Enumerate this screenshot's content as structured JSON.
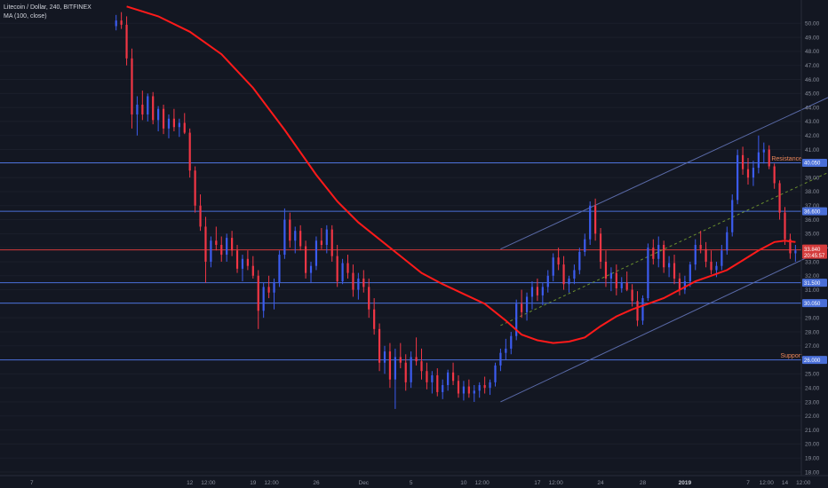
{
  "legend": {
    "symbol": "Litecoin / Dollar, 240, BITFINEX",
    "indicator": "MA (100, close)"
  },
  "colors": {
    "background": "#131722",
    "up": "#3c5cf0",
    "down": "#f23645",
    "ma": "#ff1a1a",
    "hline_blue": "#4a6fd8",
    "hline_red": "#d43b3b",
    "channel": "#5a6aa8",
    "midline": "#6a8f2e",
    "axis_text": "#8a8f9c",
    "label_orange": "#f0885a"
  },
  "chart_data": {
    "type": "candlestick",
    "title": "Litecoin / Dollar, 240, BITFINEX",
    "ylim": [
      18,
      51
    ],
    "y_ticks": [
      "50.00",
      "49.00",
      "48.00",
      "47.00",
      "46.00",
      "45.00",
      "44.00",
      "43.00",
      "42.00",
      "41.00",
      "40.00",
      "39.00",
      "38.00",
      "37.00",
      "36.00",
      "35.00",
      "34.00",
      "33.00",
      "32.00",
      "31.00",
      "30.00",
      "29.00",
      "28.00",
      "27.00",
      "26.00",
      "25.00",
      "24.00",
      "23.00",
      "22.00",
      "21.00",
      "20.00",
      "19.00",
      "18.00"
    ],
    "x_ticks": [
      {
        "label": "7",
        "t": 0
      },
      {
        "label": "12",
        "t": 30
      },
      {
        "label": "12:00",
        "t": 33.5
      },
      {
        "label": "19",
        "t": 42
      },
      {
        "label": "12:00",
        "t": 45.5
      },
      {
        "label": "26",
        "t": 54
      },
      {
        "label": "Dec",
        "t": 63
      },
      {
        "label": "5",
        "t": 72
      },
      {
        "label": "10",
        "t": 82
      },
      {
        "label": "12:00",
        "t": 85.5
      },
      {
        "label": "17",
        "t": 96
      },
      {
        "label": "12:00",
        "t": 99.5
      },
      {
        "label": "24",
        "t": 108
      },
      {
        "label": "28",
        "t": 116
      },
      {
        "label": "2019",
        "t": 124,
        "bold": true
      },
      {
        "label": "7",
        "t": 136
      },
      {
        "label": "12:00",
        "t": 139.5
      },
      {
        "label": "14",
        "t": 143
      },
      {
        "label": "12:00",
        "t": 146.5
      }
    ],
    "x_range": [
      -2,
      150
    ],
    "candles": [
      [
        16,
        49.8,
        50.6,
        49.5,
        50.2
      ],
      [
        17,
        50.2,
        50.8,
        49.6,
        49.9
      ],
      [
        18,
        49.9,
        50.5,
        47.0,
        47.5
      ],
      [
        19,
        47.5,
        48.2,
        42.5,
        43.5
      ],
      [
        20,
        43.5,
        44.8,
        42.0,
        44.2
      ],
      [
        21,
        44.2,
        45.2,
        43.1,
        43.5
      ],
      [
        22,
        43.5,
        45.0,
        43.0,
        44.8
      ],
      [
        23,
        44.8,
        45.1,
        42.8,
        43.1
      ],
      [
        24,
        43.1,
        44.1,
        42.3,
        43.9
      ],
      [
        25,
        43.9,
        44.2,
        42.1,
        42.5
      ],
      [
        26,
        42.5,
        43.5,
        41.8,
        43.2
      ],
      [
        27,
        43.2,
        43.9,
        42.3,
        42.6
      ],
      [
        28,
        42.6,
        43.2,
        41.9,
        42.9
      ],
      [
        29,
        42.9,
        43.6,
        42.1,
        42.2
      ],
      [
        30,
        42.2,
        42.5,
        39.0,
        39.5
      ],
      [
        31,
        39.5,
        39.8,
        36.5,
        37.0
      ],
      [
        32,
        37.0,
        37.8,
        35.2,
        35.5
      ],
      [
        33,
        35.5,
        36.2,
        31.5,
        33.0
      ],
      [
        34,
        33.0,
        34.8,
        32.6,
        34.5
      ],
      [
        35,
        34.5,
        35.5,
        33.8,
        34.2
      ],
      [
        36,
        34.2,
        34.8,
        33.0,
        33.5
      ],
      [
        37,
        33.5,
        35.0,
        33.0,
        34.7
      ],
      [
        38,
        34.7,
        35.2,
        33.4,
        33.8
      ],
      [
        39,
        33.8,
        34.2,
        32.2,
        32.5
      ],
      [
        40,
        32.5,
        33.5,
        31.6,
        33.2
      ],
      [
        41,
        33.2,
        33.8,
        32.4,
        32.7
      ],
      [
        42,
        32.7,
        33.4,
        31.8,
        32.0
      ],
      [
        43,
        32.0,
        32.4,
        28.2,
        29.5
      ],
      [
        44,
        29.5,
        31.5,
        29.0,
        31.2
      ],
      [
        45,
        31.2,
        32.0,
        30.4,
        30.8
      ],
      [
        46,
        30.8,
        31.8,
        29.6,
        31.5
      ],
      [
        47,
        31.5,
        33.8,
        31.2,
        33.5
      ],
      [
        48,
        33.5,
        36.8,
        33.2,
        36.0
      ],
      [
        49,
        36.0,
        36.5,
        34.0,
        34.5
      ],
      [
        50,
        34.5,
        35.5,
        33.6,
        35.2
      ],
      [
        51,
        35.2,
        35.6,
        33.8,
        34.1
      ],
      [
        52,
        34.1,
        34.5,
        31.8,
        32.2
      ],
      [
        53,
        32.2,
        33.0,
        31.5,
        32.7
      ],
      [
        54,
        32.7,
        34.8,
        32.4,
        34.5
      ],
      [
        55,
        34.5,
        35.4,
        33.9,
        34.2
      ],
      [
        56,
        34.2,
        35.6,
        33.6,
        35.3
      ],
      [
        57,
        35.3,
        35.6,
        33.0,
        33.4
      ],
      [
        58,
        33.4,
        34.2,
        31.2,
        31.6
      ],
      [
        59,
        31.6,
        33.2,
        31.4,
        32.9
      ],
      [
        60,
        32.9,
        33.5,
        31.8,
        32.2
      ],
      [
        61,
        32.2,
        32.8,
        30.5,
        31.0
      ],
      [
        62,
        31.0,
        32.2,
        30.3,
        31.8
      ],
      [
        63,
        31.8,
        32.4,
        30.8,
        31.2
      ],
      [
        64,
        31.2,
        31.8,
        29.0,
        29.6
      ],
      [
        65,
        29.6,
        30.4,
        27.8,
        28.2
      ],
      [
        66,
        28.2,
        28.6,
        25.2,
        25.8
      ],
      [
        67,
        25.8,
        27.0,
        25.0,
        26.6
      ],
      [
        68,
        26.6,
        27.2,
        24.0,
        24.6
      ],
      [
        69,
        24.6,
        26.8,
        22.5,
        26.2
      ],
      [
        70,
        26.2,
        27.2,
        25.4,
        25.8
      ],
      [
        71,
        25.8,
        26.4,
        23.8,
        24.4
      ],
      [
        72,
        24.4,
        26.6,
        24.0,
        26.2
      ],
      [
        73,
        26.2,
        27.6,
        25.6,
        25.9
      ],
      [
        74,
        25.9,
        26.8,
        24.6,
        25.2
      ],
      [
        75,
        25.2,
        25.8,
        23.9,
        24.4
      ],
      [
        76,
        24.4,
        25.2,
        23.6,
        24.9
      ],
      [
        77,
        24.9,
        25.4,
        23.4,
        23.7
      ],
      [
        78,
        23.7,
        24.6,
        23.2,
        24.2
      ],
      [
        79,
        24.2,
        25.3,
        23.8,
        25.1
      ],
      [
        80,
        25.1,
        25.8,
        24.2,
        24.5
      ],
      [
        81,
        24.5,
        24.9,
        23.3,
        23.6
      ],
      [
        82,
        23.6,
        24.5,
        23.1,
        24.1
      ],
      [
        83,
        24.1,
        24.6,
        23.3,
        23.6
      ],
      [
        84,
        23.6,
        24.2,
        23.0,
        23.8
      ],
      [
        85,
        23.8,
        24.4,
        23.3,
        24.2
      ],
      [
        86,
        24.2,
        24.8,
        23.6,
        24.0
      ],
      [
        87,
        24.0,
        24.6,
        23.5,
        24.4
      ],
      [
        88,
        24.4,
        25.8,
        24.1,
        25.6
      ],
      [
        89,
        25.6,
        26.8,
        25.2,
        26.5
      ],
      [
        90,
        26.5,
        27.5,
        26.0,
        26.8
      ],
      [
        91,
        26.8,
        28.0,
        26.4,
        27.7
      ],
      [
        92,
        27.7,
        30.3,
        27.4,
        30.0
      ],
      [
        93,
        30.0,
        31.0,
        29.0,
        29.4
      ],
      [
        94,
        29.4,
        30.8,
        28.8,
        30.5
      ],
      [
        95,
        30.5,
        31.6,
        29.6,
        31.2
      ],
      [
        96,
        31.2,
        31.8,
        30.2,
        30.6
      ],
      [
        97,
        30.6,
        31.5,
        29.9,
        31.2
      ],
      [
        98,
        31.2,
        32.4,
        30.8,
        32.0
      ],
      [
        99,
        32.0,
        33.6,
        31.6,
        33.3
      ],
      [
        100,
        33.3,
        34.0,
        32.4,
        32.8
      ],
      [
        101,
        32.8,
        33.4,
        31.0,
        31.4
      ],
      [
        102,
        31.4,
        32.0,
        30.8,
        31.8
      ],
      [
        103,
        31.8,
        32.8,
        31.4,
        32.4
      ],
      [
        104,
        32.4,
        34.0,
        32.1,
        33.7
      ],
      [
        105,
        33.7,
        35.0,
        33.4,
        34.6
      ],
      [
        106,
        34.6,
        37.3,
        34.2,
        37.0
      ],
      [
        107,
        37.0,
        37.5,
        34.5,
        35.0
      ],
      [
        108,
        35.0,
        35.4,
        32.5,
        33.0
      ],
      [
        109,
        33.0,
        33.8,
        31.2,
        31.8
      ],
      [
        110,
        31.8,
        32.6,
        30.9,
        32.2
      ],
      [
        111,
        32.2,
        32.8,
        30.6,
        31.1
      ],
      [
        112,
        31.1,
        31.9,
        30.8,
        31.5
      ],
      [
        113,
        31.5,
        32.3,
        30.9,
        31.0
      ],
      [
        114,
        31.0,
        31.4,
        29.8,
        30.2
      ],
      [
        115,
        30.2,
        30.9,
        28.4,
        28.8
      ],
      [
        116,
        28.8,
        30.6,
        28.5,
        30.4
      ],
      [
        117,
        30.4,
        34.3,
        30.2,
        34.0
      ],
      [
        118,
        34.0,
        34.6,
        32.8,
        33.2
      ],
      [
        119,
        33.2,
        34.8,
        32.6,
        34.2
      ],
      [
        120,
        34.2,
        34.5,
        32.2,
        32.6
      ],
      [
        121,
        32.6,
        33.4,
        31.9,
        32.9
      ],
      [
        122,
        32.9,
        33.5,
        31.4,
        31.8
      ],
      [
        123,
        31.8,
        32.2,
        30.6,
        31.0
      ],
      [
        124,
        31.0,
        32.0,
        30.7,
        31.6
      ],
      [
        125,
        31.6,
        33.0,
        31.2,
        32.8
      ],
      [
        126,
        32.8,
        34.6,
        32.4,
        34.2
      ],
      [
        127,
        34.2,
        35.2,
        33.6,
        33.9
      ],
      [
        128,
        33.9,
        34.4,
        32.6,
        33.0
      ],
      [
        129,
        33.0,
        33.8,
        32.1,
        32.4
      ],
      [
        130,
        32.4,
        33.0,
        31.9,
        32.7
      ],
      [
        131,
        32.7,
        34.2,
        32.4,
        33.8
      ],
      [
        132,
        33.8,
        35.5,
        33.5,
        35.1
      ],
      [
        133,
        35.1,
        37.8,
        34.8,
        37.4
      ],
      [
        134,
        37.4,
        41.0,
        37.1,
        40.6
      ],
      [
        135,
        40.6,
        41.2,
        39.2,
        39.6
      ],
      [
        136,
        39.6,
        40.4,
        38.5,
        39.0
      ],
      [
        137,
        39.0,
        40.2,
        38.4,
        39.7
      ],
      [
        138,
        39.7,
        42.0,
        39.3,
        40.8
      ],
      [
        139,
        40.8,
        41.5,
        40.0,
        41.0
      ],
      [
        140,
        41.0,
        41.3,
        39.6,
        39.8
      ],
      [
        141,
        39.8,
        40.0,
        38.2,
        38.6
      ],
      [
        142,
        38.6,
        38.8,
        36.0,
        36.5
      ],
      [
        143,
        36.5,
        36.9,
        34.2,
        34.6
      ],
      [
        144,
        34.6,
        35.0,
        33.2,
        33.6
      ],
      [
        145,
        33.6,
        34.2,
        33.0,
        33.8
      ]
    ],
    "ma": {
      "name": "MA (100, close)",
      "points": [
        [
          18,
          51.2
        ],
        [
          24,
          50.5
        ],
        [
          30,
          49.4
        ],
        [
          36,
          47.8
        ],
        [
          42,
          45.4
        ],
        [
          48,
          42.4
        ],
        [
          54,
          39.2
        ],
        [
          58,
          37.3
        ],
        [
          62,
          35.8
        ],
        [
          66,
          34.6
        ],
        [
          70,
          33.4
        ],
        [
          74,
          32.2
        ],
        [
          78,
          31.4
        ],
        [
          82,
          30.7
        ],
        [
          86,
          30.0
        ],
        [
          90,
          28.8
        ],
        [
          93,
          27.8
        ],
        [
          96,
          27.4
        ],
        [
          99,
          27.2
        ],
        [
          102,
          27.3
        ],
        [
          105,
          27.6
        ],
        [
          108,
          28.4
        ],
        [
          111,
          29.1
        ],
        [
          114,
          29.6
        ],
        [
          117,
          30.0
        ],
        [
          120,
          30.4
        ],
        [
          123,
          31.0
        ],
        [
          126,
          31.6
        ],
        [
          129,
          32.0
        ],
        [
          132,
          32.4
        ],
        [
          135,
          33.1
        ],
        [
          138,
          33.8
        ],
        [
          141,
          34.4
        ],
        [
          143,
          34.5
        ],
        [
          145,
          34.4
        ]
      ]
    },
    "hlines": [
      {
        "value": 40.05,
        "tag": "40.050",
        "label": "Resistance",
        "style": "blue"
      },
      {
        "value": 36.6,
        "tag": "36.600",
        "label": "",
        "style": "blue"
      },
      {
        "value": 33.84,
        "tag": "33.840",
        "label": "",
        "style": "red"
      },
      {
        "value": 31.5,
        "tag": "31.500",
        "label": "",
        "style": "blue"
      },
      {
        "value": 30.05,
        "tag": "30.050",
        "label": "",
        "style": "blue"
      },
      {
        "value": 26.0,
        "tag": "26.000",
        "label": "Support",
        "style": "blue"
      }
    ],
    "price_tag": {
      "value": 33.84,
      "line1": "33.840",
      "line2": "20:45:57"
    },
    "channel": {
      "upper": [
        [
          89,
          33.9
        ],
        [
          154,
          45.2
        ]
      ],
      "lower": [
        [
          89,
          23.0
        ],
        [
          154,
          34.5
        ]
      ],
      "mid": [
        [
          89,
          28.45
        ],
        [
          154,
          39.85
        ]
      ]
    }
  }
}
